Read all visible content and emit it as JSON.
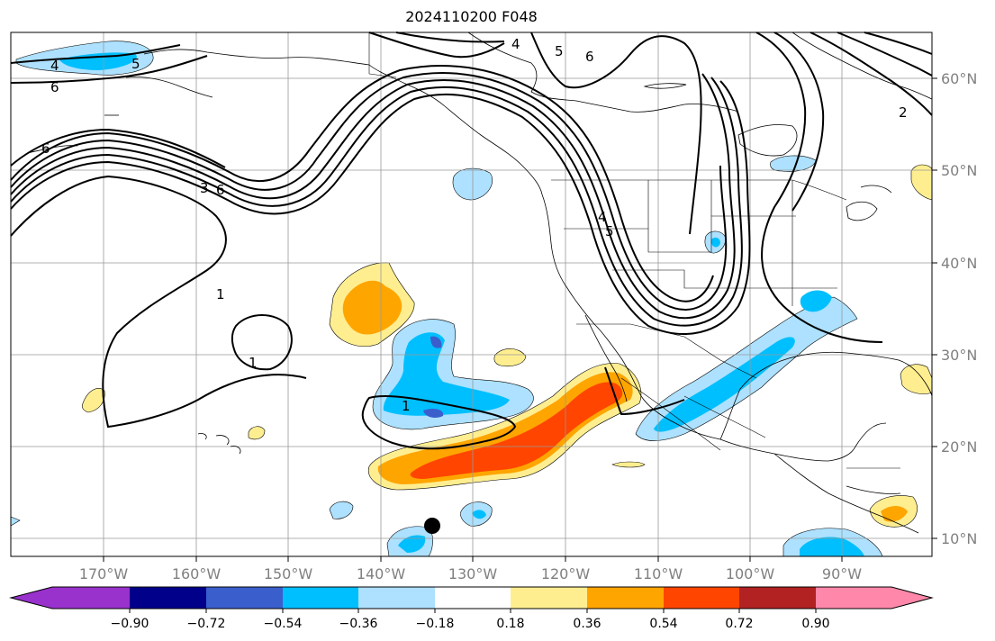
{
  "title": "2024110200 F048",
  "map": {
    "lon_labels": [
      "170°W",
      "160°W",
      "150°W",
      "140°W",
      "130°W",
      "120°W",
      "110°W",
      "100°W",
      "90°W"
    ],
    "lat_labels": [
      "60°N",
      "50°N",
      "40°N",
      "30°N",
      "20°N",
      "10°N"
    ],
    "contour_labels": [
      "4",
      "5",
      "6",
      "6",
      "3",
      "4",
      "5",
      "6",
      "1",
      "1",
      "1",
      "2",
      "4",
      "5",
      "6"
    ],
    "colors": {
      "p018": "#ffee90",
      "p036": "#ffa500",
      "p054": "#ff4500",
      "p072": "#b22222",
      "p090": "#ff88aa",
      "n018": "#ade1ff",
      "n036": "#00bfff",
      "n054": "#3a5fcd",
      "n072": "#00008b",
      "n090": "#9932cc"
    }
  },
  "colorbar": {
    "ticks": [
      "−0.90",
      "−0.72",
      "−0.54",
      "−0.36",
      "−0.18",
      "0.18",
      "0.36",
      "0.54",
      "0.72",
      "0.90"
    ],
    "colors": [
      "#9932cc",
      "#00008b",
      "#3a5fcd",
      "#00bfff",
      "#ade1ff",
      "#ffffff",
      "#ffee90",
      "#ffa500",
      "#ff4500",
      "#b22222",
      "#ff88aa"
    ]
  }
}
